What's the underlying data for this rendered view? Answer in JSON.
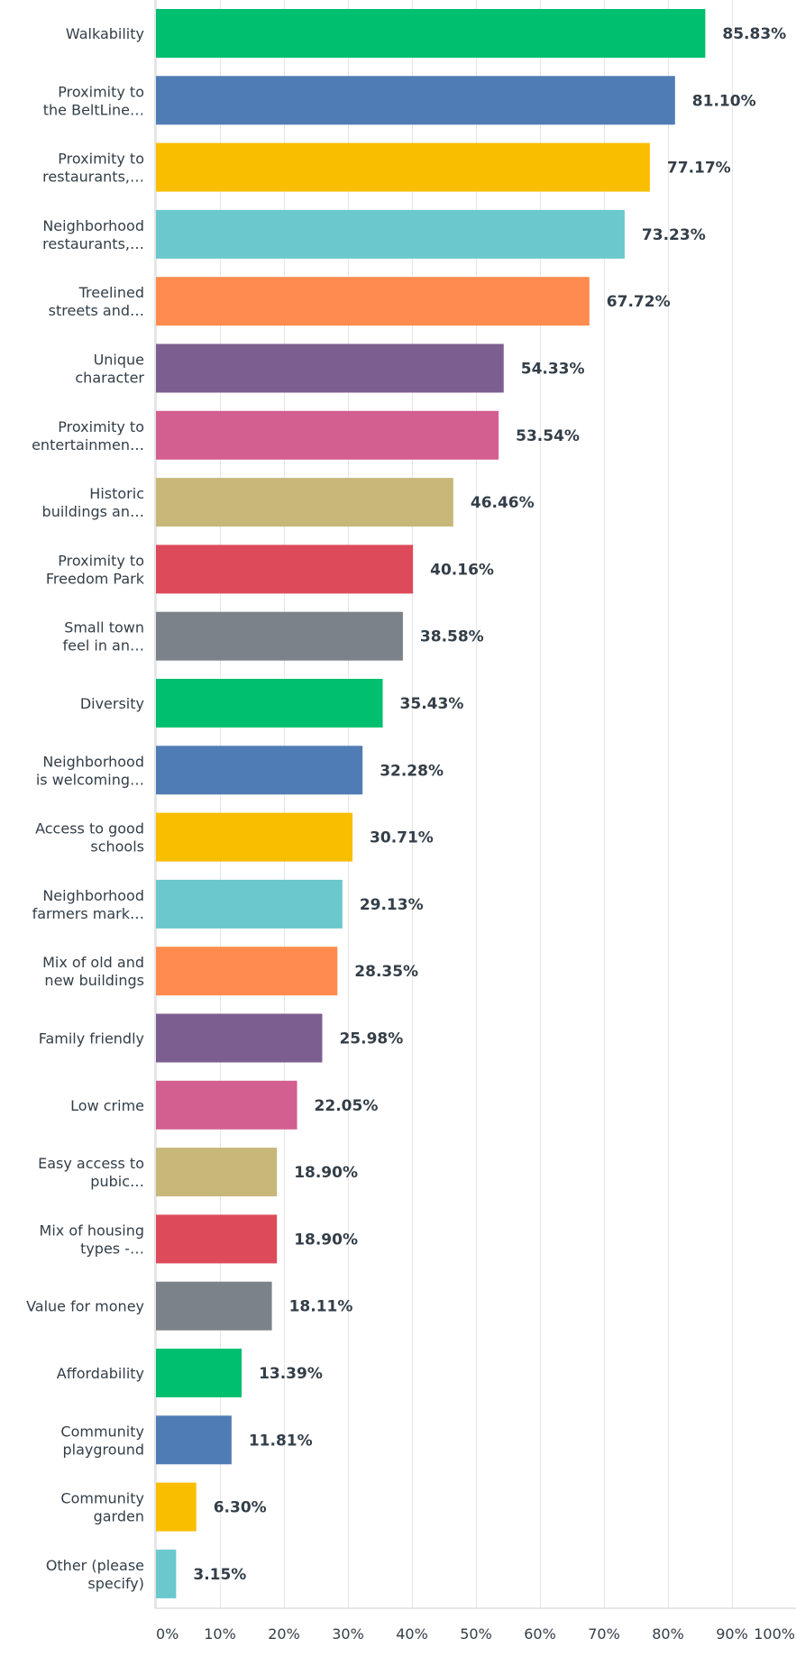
{
  "chart_data": {
    "type": "bar",
    "orientation": "horizontal",
    "categories": [
      [
        "Walkability"
      ],
      [
        "Proximity to",
        "the BeltLine…"
      ],
      [
        "Proximity to",
        "restaurants,…"
      ],
      [
        "Neighborhood",
        "restaurants,…"
      ],
      [
        "Treelined",
        "streets and…"
      ],
      [
        "Unique",
        "character"
      ],
      [
        "Proximity to",
        "entertainmen…"
      ],
      [
        "Historic",
        "buildings an…"
      ],
      [
        "Proximity to",
        "Freedom Park"
      ],
      [
        "Small town",
        "feel in an…"
      ],
      [
        "Diversity"
      ],
      [
        "Neighborhood",
        "is welcoming…"
      ],
      [
        "Access to good",
        "schools"
      ],
      [
        "Neighborhood",
        "farmers mark…"
      ],
      [
        "Mix of old and",
        "new buildings"
      ],
      [
        "Family friendly"
      ],
      [
        "Low crime"
      ],
      [
        "Easy access to",
        "pubic…"
      ],
      [
        "Mix of housing",
        "types -…"
      ],
      [
        "Value for money"
      ],
      [
        "Affordability"
      ],
      [
        "Community",
        "playground"
      ],
      [
        "Community",
        "garden"
      ],
      [
        "Other (please",
        "specify)"
      ]
    ],
    "values": [
      85.83,
      81.1,
      77.17,
      73.23,
      67.72,
      54.33,
      53.54,
      46.46,
      40.16,
      38.58,
      35.43,
      32.28,
      30.71,
      29.13,
      28.35,
      25.98,
      22.05,
      18.9,
      18.9,
      18.11,
      13.39,
      11.81,
      6.3,
      3.15
    ],
    "value_labels": [
      "85.83%",
      "81.10%",
      "77.17%",
      "73.23%",
      "67.72%",
      "54.33%",
      "53.54%",
      "46.46%",
      "40.16%",
      "38.58%",
      "35.43%",
      "32.28%",
      "30.71%",
      "29.13%",
      "28.35%",
      "25.98%",
      "22.05%",
      "18.90%",
      "18.90%",
      "18.11%",
      "13.39%",
      "11.81%",
      "6.30%",
      "3.15%"
    ],
    "xlim": [
      0,
      100
    ],
    "xticks": [
      "0%",
      "10%",
      "20%",
      "30%",
      "40%",
      "50%",
      "60%",
      "70%",
      "80%",
      "90%",
      "100%"
    ],
    "grid": true,
    "colors": [
      "#00bf6f",
      "#507cb6",
      "#f9be00",
      "#6bc8cd",
      "#ff8b4f",
      "#7d5e90",
      "#d25f90",
      "#c7b879",
      "#dd4b5b",
      "#7b8289"
    ],
    "grid_color": "#e6e6e6",
    "axis_color": "#c8ccd0"
  }
}
